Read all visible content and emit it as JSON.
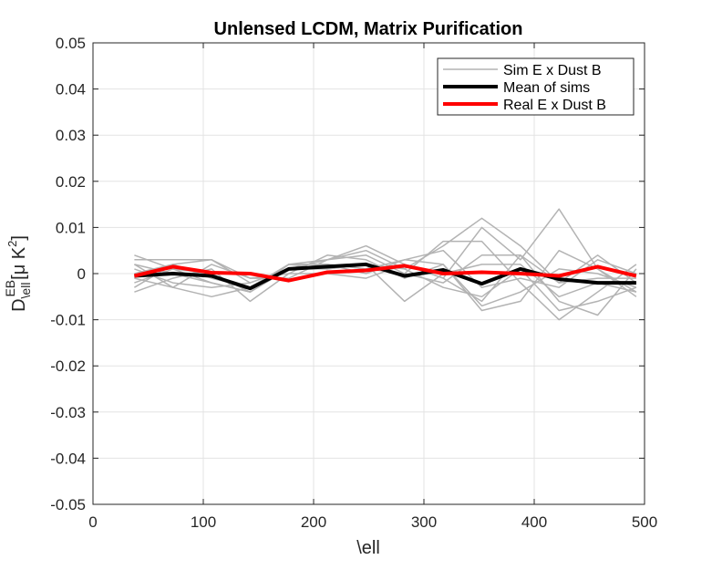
{
  "chart_data": {
    "type": "line",
    "title": "Unlensed LCDM, Matrix Purification",
    "xlabel": "\\ell",
    "ylabel": {
      "base": "D",
      "sup": "EB",
      "sub": "\\ell",
      "unit": "[μ K",
      "unit_sup": "2",
      "unit_close": "]"
    },
    "xlim": [
      0,
      500
    ],
    "ylim": [
      -0.05,
      0.05
    ],
    "xticks": [
      0,
      100,
      200,
      300,
      400,
      500
    ],
    "xtick_labels": [
      "0",
      "100",
      "200",
      "300",
      "400",
      "500"
    ],
    "yticks": [
      0.05,
      0.04,
      0.03,
      0.02,
      0.01,
      0,
      -0.01,
      -0.02,
      -0.03,
      -0.04,
      -0.05
    ],
    "ytick_labels": [
      "0.05",
      "0.04",
      "0.03",
      "0.02",
      "0.01",
      "0",
      "-0.01",
      "-0.02",
      "-0.03",
      "-0.04",
      "-0.05"
    ],
    "grid": true,
    "legend_position": "top-right",
    "x": [
      37.5,
      72.5,
      107.5,
      142.5,
      177.5,
      212.5,
      247.5,
      282.5,
      317.5,
      352.5,
      387.5,
      422.5,
      457.5,
      492.5
    ],
    "sims": [
      [
        0.004,
        0.001,
        -0.002,
        -0.004,
        0.002,
        0.003,
        0.005,
        0.001,
        0.006,
        0.012,
        0.006,
        -0.002,
        0.004,
        -0.002
      ],
      [
        -0.003,
        0.002,
        0.003,
        -0.002,
        0.001,
        0.003,
        0.006,
        0.002,
        -0.001,
        0.01,
        0.003,
        0.014,
        0.001,
        -0.004
      ],
      [
        0.002,
        -0.003,
        -0.005,
        -0.003,
        0.002,
        0.002,
        0.001,
        0.0,
        0.007,
        0.007,
        -0.002,
        -0.01,
        -0.004,
        0.002
      ],
      [
        -0.004,
        -0.001,
        0.001,
        -0.006,
        0.0,
        0.004,
        0.003,
        -0.001,
        0.002,
        -0.008,
        -0.006,
        0.005,
        0.001,
        -0.005
      ],
      [
        0.003,
        0.003,
        0.003,
        -0.001,
        0.0,
        0.0,
        -0.001,
        0.002,
        -0.001,
        -0.006,
        0.004,
        -0.006,
        -0.009,
        0.001
      ],
      [
        0.001,
        -0.002,
        -0.003,
        -0.002,
        0.001,
        0.001,
        0.002,
        -0.006,
        0.0,
        0.002,
        0.002,
        -0.005,
        -0.002,
        -0.004
      ],
      [
        -0.002,
        0.001,
        0.0,
        -0.004,
        0.001,
        0.002,
        0.001,
        0.003,
        0.005,
        -0.003,
        -0.001,
        -0.003,
        0.003,
        0.0
      ],
      [
        0.0,
        0.002,
        -0.001,
        -0.003,
        0.002,
        0.001,
        0.002,
        0.001,
        -0.003,
        -0.005,
        0.001,
        -0.008,
        -0.006,
        -0.003
      ],
      [
        -0.001,
        -0.003,
        0.002,
        -0.001,
        -0.001,
        0.003,
        0.004,
        0.0,
        -0.002,
        0.004,
        0.004,
        -0.002,
        -0.001,
        -0.001
      ],
      [
        0.002,
        0.0,
        -0.002,
        -0.004,
        0.002,
        0.002,
        0.0,
        0.003,
        0.002,
        -0.007,
        -0.004,
        0.001,
        0.0,
        -0.003
      ]
    ],
    "mean": [
      -0.0005,
      0.0,
      -0.0005,
      -0.0032,
      0.001,
      0.0015,
      0.002,
      -0.0005,
      0.0008,
      -0.0022,
      0.001,
      -0.0012,
      -0.002,
      -0.002
    ],
    "real": [
      -0.0005,
      0.0015,
      0.0002,
      0.0,
      -0.0015,
      0.0003,
      0.0007,
      0.0017,
      0.0,
      0.0003,
      0.0,
      -0.0005,
      0.0015,
      -0.0005
    ],
    "legend": [
      {
        "label": "Sim E x Dust B",
        "color": "#b3b3b3",
        "width": 1.5
      },
      {
        "label": "Mean of sims",
        "color": "#000000",
        "width": 4
      },
      {
        "label": "Real E x Dust B",
        "color": "#ff0000",
        "width": 4
      }
    ],
    "colors": {
      "sim": "#b3b3b3",
      "mean": "#000000",
      "real": "#ff0000",
      "axis": "#262626",
      "grid": "#e3e3e3"
    }
  }
}
